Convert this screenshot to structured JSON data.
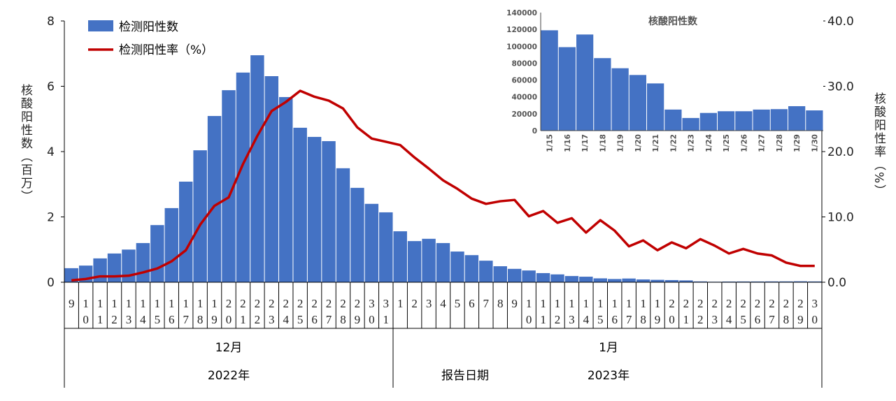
{
  "chart_data": [
    {
      "type": "bar+line",
      "legend": [
        "检测阳性数",
        "检测阳性率（%）"
      ],
      "legend_position": "top-left",
      "ylabel": "核酸阳性数（百万）",
      "y2label": "核酸阳性率（%）",
      "xlabel": "报告日期",
      "ylim": [
        0,
        8
      ],
      "yticks": [
        "0",
        "2",
        "4",
        "6",
        "8"
      ],
      "y2lim": [
        0,
        40
      ],
      "y2ticks": [
        "0.0",
        "10.0",
        "20.0",
        "30.0",
        "40.0"
      ],
      "months": [
        {
          "label": "12月",
          "year": "2022年"
        },
        {
          "label": "1月",
          "year": "2023年"
        }
      ],
      "dec_days": [
        9,
        10,
        11,
        12,
        13,
        14,
        15,
        16,
        17,
        18,
        19,
        20,
        21,
        22,
        23,
        24,
        25,
        26,
        27,
        28,
        29,
        30,
        31
      ],
      "jan_days": [
        1,
        2,
        3,
        4,
        5,
        6,
        7,
        8,
        9,
        10,
        11,
        12,
        13,
        14,
        15,
        16,
        17,
        18,
        19,
        20,
        21,
        22,
        23,
        24,
        25,
        26,
        27,
        28,
        29,
        30
      ],
      "bar_color": "#4472C4",
      "line_color": "#C00000",
      "series": [
        {
          "name": "检测阳性数",
          "values": [
            0.43,
            0.51,
            0.73,
            0.88,
            1.0,
            1.2,
            1.75,
            2.27,
            3.08,
            4.04,
            5.09,
            5.88,
            6.42,
            6.95,
            6.31,
            5.67,
            4.73,
            4.45,
            4.32,
            3.49,
            2.89,
            2.4,
            2.14,
            1.56,
            1.26,
            1.33,
            1.2,
            0.94,
            0.83,
            0.66,
            0.49,
            0.41,
            0.36,
            0.28,
            0.24,
            0.19,
            0.17,
            0.119,
            0.099,
            0.114,
            0.086,
            0.074,
            0.066,
            0.056,
            0.025,
            0.015,
            0.021,
            0.023,
            0.023,
            0.025,
            0.0255,
            0.029,
            0.024
          ]
        },
        {
          "name": "检测阳性率（%）",
          "values": [
            0.3,
            0.5,
            0.9,
            0.9,
            1.0,
            1.5,
            2.1,
            3.2,
            4.9,
            8.8,
            11.7,
            13.0,
            18.1,
            22.4,
            26.2,
            27.6,
            29.3,
            28.4,
            27.8,
            26.6,
            23.7,
            22.0,
            21.5,
            21.0,
            19.1,
            17.4,
            15.6,
            14.3,
            12.8,
            12.0,
            12.4,
            12.6,
            10.1,
            10.9,
            9.1,
            9.8,
            7.6,
            9.5,
            7.9,
            5.5,
            6.4,
            4.9,
            6.1,
            5.2,
            6.6,
            5.6,
            4.4,
            5.1,
            4.4,
            4.1,
            3.0,
            2.5,
            2.5
          ]
        }
      ]
    },
    {
      "type": "bar",
      "title": "核酸阳性数",
      "categories": [
        "1/15",
        "1/16",
        "1/17",
        "1/18",
        "1/19",
        "1/20",
        "1/21",
        "1/22",
        "1/23",
        "1/24",
        "1/25",
        "1/26",
        "1/27",
        "1/28",
        "1/29",
        "1/30"
      ],
      "values": [
        119000,
        99000,
        114000,
        86000,
        74000,
        66000,
        56000,
        25000,
        15000,
        21000,
        23000,
        23000,
        25000,
        25500,
        29000,
        24000
      ],
      "ylim": [
        0,
        140000
      ],
      "yticks": [
        "0",
        "20000",
        "40000",
        "60000",
        "80000",
        "100000",
        "120000",
        "140000"
      ],
      "bar_color": "#4472C4"
    }
  ]
}
